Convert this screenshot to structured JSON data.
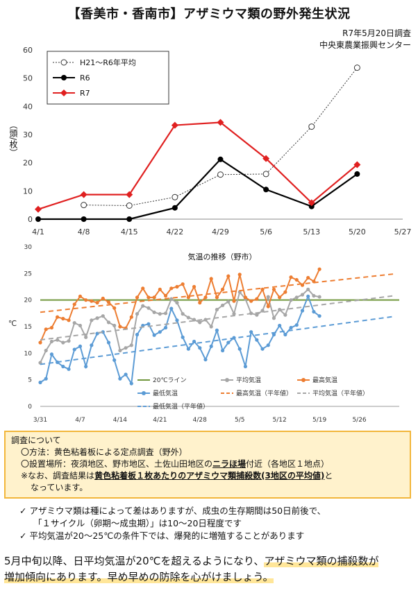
{
  "title": "【香美市・香南市】アザミウマ類の野外発生状況",
  "survey_date": "R7年5月20日調査",
  "org": "中央東農業振興センター",
  "chart_data": [
    {
      "type": "line",
      "x": [
        "4/1",
        "4/8",
        "4/15",
        "4/22",
        "4/29",
        "5/6",
        "5/13",
        "5/20",
        "5/27"
      ],
      "ylabel": "（頭/枚）",
      "ylim": [
        0,
        60
      ],
      "yticks": [
        "0",
        "10",
        "20",
        "30",
        "40",
        "50",
        "60"
      ],
      "series": [
        {
          "name": "H21〜R6年平均",
          "style": "dotted-open-circle",
          "color": "#333333",
          "values": [
            null,
            5,
            4.8,
            7.8,
            15.8,
            16,
            32.8,
            53.7,
            null
          ]
        },
        {
          "name": "R6",
          "style": "solid-filled-circle",
          "color": "#000000",
          "values": [
            0,
            0,
            0,
            4,
            21.2,
            10.5,
            4.5,
            16,
            null
          ]
        },
        {
          "name": "R7",
          "style": "solid-diamond",
          "color": "#e02020",
          "values": [
            3.5,
            8.7,
            8.7,
            33.3,
            34.3,
            21.5,
            5.8,
            19.3,
            null
          ]
        }
      ]
    },
    {
      "type": "line",
      "title": "気温の推移（野市）",
      "ylabel": "℃",
      "ylim": [
        0,
        30
      ],
      "yticks": [
        "0",
        "5",
        "10",
        "15",
        "20",
        "25",
        "30"
      ],
      "x_ticks": [
        "3/31",
        "4/7",
        "4/14",
        "4/21",
        "4/28",
        "5/5",
        "5/12",
        "5/19",
        "5/26"
      ],
      "legend": [
        "20℃ライン",
        "平均気温",
        "最高気温",
        "最低気温",
        "最高気温（平年値）",
        "平均気温（平年値）",
        "最低気温（平年値）"
      ],
      "series": [
        {
          "name": "20℃ライン",
          "color": "#70963c",
          "values": [
            20,
            20
          ]
        },
        {
          "name": "平均気温",
          "color": "#a6a6a6",
          "values": [
            8.2,
            10.5,
            12.2,
            12.5,
            12.0,
            12.3,
            15.7,
            15.2,
            13.0,
            16.2,
            16.6,
            17.0,
            15.8,
            15.2,
            10.5,
            11.0,
            11.5,
            17.4,
            18.9,
            18.5,
            17.7,
            17.4,
            17.5,
            20.2,
            19.5,
            17.4,
            16.7,
            16.3,
            15.8,
            16.3,
            15.0,
            18.2,
            19.0,
            19.7,
            17.4,
            21.5,
            20.2,
            17.5,
            17.2,
            18.0,
            20.6,
            16.6,
            18.2,
            17.2,
            20.0,
            20.5,
            21.0,
            22.0,
            20.8,
            20.6
          ]
        },
        {
          "name": "最高気温",
          "color": "#ed7d31",
          "values": [
            12.0,
            14.5,
            14.8,
            16.8,
            16.5,
            16.2,
            19.2,
            20.7,
            20.0,
            19.8,
            19.5,
            20.3,
            19.6,
            18.5,
            15.0,
            14.7,
            16.8,
            20.5,
            22.2,
            20.5,
            20.5,
            22.0,
            20.8,
            22.2,
            22.5,
            23.0,
            20.5,
            22.5,
            19.5,
            20.5,
            24.0,
            20.5,
            22.0,
            24.5,
            19.8,
            24.8,
            20.5,
            19.8,
            20.2,
            22.0,
            18.8,
            22.0,
            20.5,
            21.5,
            24.3,
            23.8,
            22.8,
            24.2,
            23.5,
            25.8
          ]
        },
        {
          "name": "最低気温",
          "color": "#5b9bd5",
          "values": [
            4.5,
            5.2,
            9.8,
            8.3,
            7.5,
            7.0,
            10.7,
            11.3,
            7.5,
            11.5,
            13.7,
            14.0,
            12.0,
            8.7,
            5.2,
            6.0,
            4.3,
            13.5,
            15.2,
            15.5,
            13.4,
            14.0,
            14.8,
            18.4,
            16.2,
            13.0,
            10.8,
            12.2,
            11.0,
            8.8,
            11.3,
            14.3,
            10.5,
            12.0,
            12.9,
            10.8,
            7.5,
            14.0,
            12.5,
            10.8,
            11.5,
            13.5,
            15.2,
            13.5,
            14.8,
            15.3,
            18.0,
            20.7,
            17.8,
            17.0
          ]
        },
        {
          "name": "最高気温（平年値）",
          "color": "#ed7d31",
          "dashed": true,
          "values": [
            17.7,
            24.9
          ]
        },
        {
          "name": "平均気温（平年値）",
          "color": "#a6a6a6",
          "dashed": true,
          "values": [
            12.5,
            20.8
          ]
        },
        {
          "name": "最低気温（平年値）",
          "color": "#5b9bd5",
          "dashed": true,
          "values": [
            7.9,
            16.9
          ]
        }
      ]
    }
  ],
  "info": {
    "heading": "調査について",
    "method": "〇方法：黄色粘着板による定点調査（野外）",
    "place_pre": "〇設置場所：夜須地区、野市地区、土佐山田地区の",
    "place_u": "ニラほ場",
    "place_post": "付近（各地区１地点）",
    "note_pre": "※なお、調査結果は",
    "note_u": "黄色粘着板１枚あたりのアザミウマ類捕殺数(3地区の平均値)",
    "note_post": "と",
    "note_line2": "なっています。"
  },
  "notes": [
    "アザミウマ類は種によって差はありますが、成虫の生存期間は50日前後で、",
    "「１サイクル（卵期〜成虫期）」は10〜20日程度です",
    "平均気温が20〜25℃の条件下では、爆発的に増殖することがあります"
  ],
  "summary": {
    "a": "5月中旬以降、日平均気温が20℃を超えるようになり、",
    "b": "アザミウマ類の捕殺数が",
    "c": "増加傾向にあります。早め早めの防除を心がけましょう。"
  }
}
